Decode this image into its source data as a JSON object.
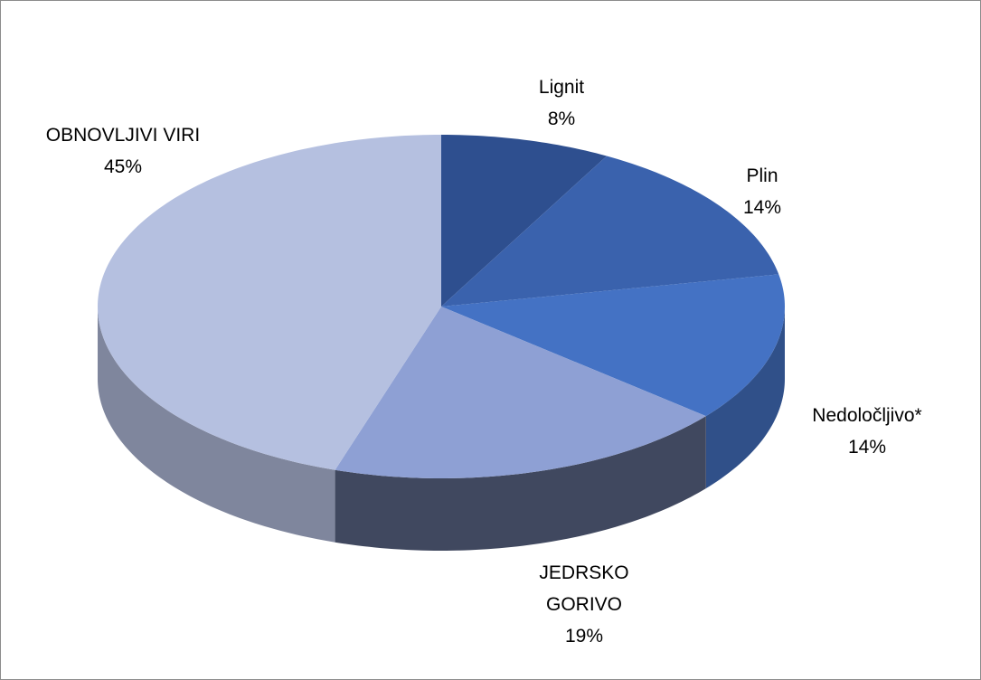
{
  "chart_data": {
    "type": "pie3d",
    "categories": [
      "Lignit",
      "Plin",
      "Nedoločljivo*",
      "JEDRSKO GORIVO",
      "OBNOVLJIVI VIRI"
    ],
    "values": [
      8,
      14,
      14,
      19,
      45
    ],
    "value_labels": [
      "8%",
      "14%",
      "14%",
      "19%",
      "45%"
    ],
    "colors": [
      "#2e4f8f",
      "#3a62ad",
      "#4472c4",
      "#8ea0d4",
      "#b5c0e0"
    ]
  }
}
